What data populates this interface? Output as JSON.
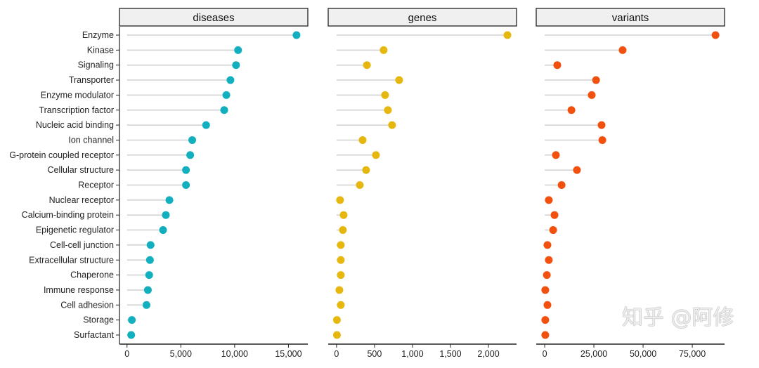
{
  "chart_data": {
    "type": "lollipop",
    "categories": [
      "Enzyme",
      "Kinase",
      "Signaling",
      "Transporter",
      "Enzyme modulator",
      "Transcription factor",
      "Nucleic acid binding",
      "Ion channel",
      "G-protein coupled receptor",
      "Cellular structure",
      "Receptor",
      "Nuclear receptor",
      "Calcium-binding protein",
      "Epigenetic regulator",
      "Cell-cell junction",
      "Extracellular structure",
      "Chaperone",
      "Immune response",
      "Cell adhesion",
      "Storage",
      "Surfactant"
    ],
    "grid": false,
    "panels": [
      {
        "name": "diseases",
        "color": "#12b0bf",
        "xlim": [
          -700,
          16800
        ],
        "ticks": [
          0,
          5000,
          10000,
          15000
        ],
        "tick_labels": [
          "0",
          "5,000",
          "10,000",
          "15,000"
        ],
        "values": [
          15750,
          10320,
          10130,
          9610,
          9230,
          9030,
          7350,
          6060,
          5870,
          5480,
          5480,
          3940,
          3610,
          3350,
          2190,
          2130,
          2060,
          1940,
          1810,
          450,
          390
        ]
      },
      {
        "name": "genes",
        "color": "#e6b80f",
        "xlim": [
          -110,
          2370
        ],
        "ticks": [
          0,
          500,
          1000,
          1500,
          2000
        ],
        "tick_labels": [
          "0",
          "500",
          "1,000",
          "1,500",
          "2,000"
        ],
        "values": [
          2250,
          620,
          400,
          824,
          639,
          676,
          731,
          343,
          519,
          389,
          306,
          46,
          93,
          83,
          56,
          56,
          56,
          37,
          56,
          5,
          5
        ]
      },
      {
        "name": "variants",
        "color": "#f2500f",
        "xlim": [
          -4300,
          91400
        ],
        "ticks": [
          0,
          25000,
          50000,
          75000
        ],
        "tick_labels": [
          "0",
          "25,000",
          "50,000",
          "75,000"
        ],
        "values": [
          86800,
          39600,
          6400,
          26100,
          23900,
          13600,
          28900,
          29300,
          5700,
          16400,
          8600,
          2100,
          5000,
          4300,
          1400,
          2100,
          1100,
          300,
          1400,
          300,
          300
        ]
      }
    ]
  },
  "watermark": "知乎 @阿修"
}
